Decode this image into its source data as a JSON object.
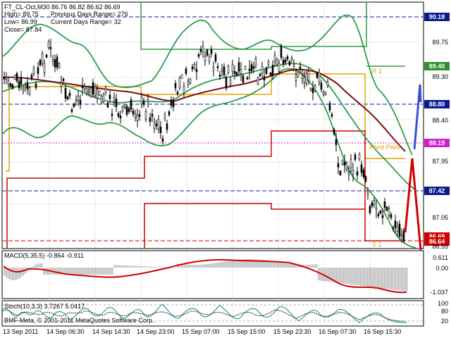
{
  "header": {
    "symbol_line": "FT_CL-Oct,M30  86.76 86.82 86.62 86.69",
    "high_line": "High= 89.75",
    "prev_range_line": "Previous Days Range= 276",
    "low_line": "Low= 86.99",
    "curr_range_line": "Current Days Range= 32",
    "close_line": "Close= 87.84"
  },
  "levels": {
    "r1": "R 1",
    "pivot": "Pivot Point",
    "s1": "S 1"
  },
  "price_axis": {
    "badges": [
      {
        "text": "90.18",
        "color": "#0b1a8c"
      },
      {
        "text": "89.40",
        "color": "#2f8f2f"
      },
      {
        "text": "88.80",
        "color": "#0b1a8c"
      },
      {
        "text": "88.19",
        "color": "#d020d0"
      },
      {
        "text": "87.42",
        "color": "#0b1a8c"
      },
      {
        "text": "86.69",
        "color": "#d00000"
      },
      {
        "text": "86.64",
        "color": "#d00000"
      }
    ],
    "ticks": [
      "89.75",
      "89.30",
      "88.40",
      "87.95",
      "87.05",
      "86.55"
    ]
  },
  "macd": {
    "label": "MACD(5,35,5) -0.864 -0.911",
    "ticks": [
      "0.611",
      "0.00",
      "-1.037"
    ]
  },
  "stoch": {
    "label": "Stoch(10,3,3) 3.7267 5.0417",
    "ticks": [
      "100",
      "80",
      "20"
    ]
  },
  "copyright": "BMF-Meta, © 2001-2011 MetaQuotes Software Corp.",
  "time_axis": [
    "13 Sep 2011",
    "14 Sep 06:30",
    "14 Sep 14:30",
    "14 Sep 23:00",
    "15 Sep 07:00",
    "15 Sep 15:00",
    "15 Sep 23:30",
    "16 Sep 07:30",
    "16 Sep 15:30"
  ],
  "colors": {
    "bollinger": "#2e9c4b",
    "ma": "#7a1010",
    "pivot_orange": "#e8a000",
    "red_levels": "#d00000",
    "dash_blue": "#0b1a8c",
    "forecast_blue": "#3a50d0"
  }
}
